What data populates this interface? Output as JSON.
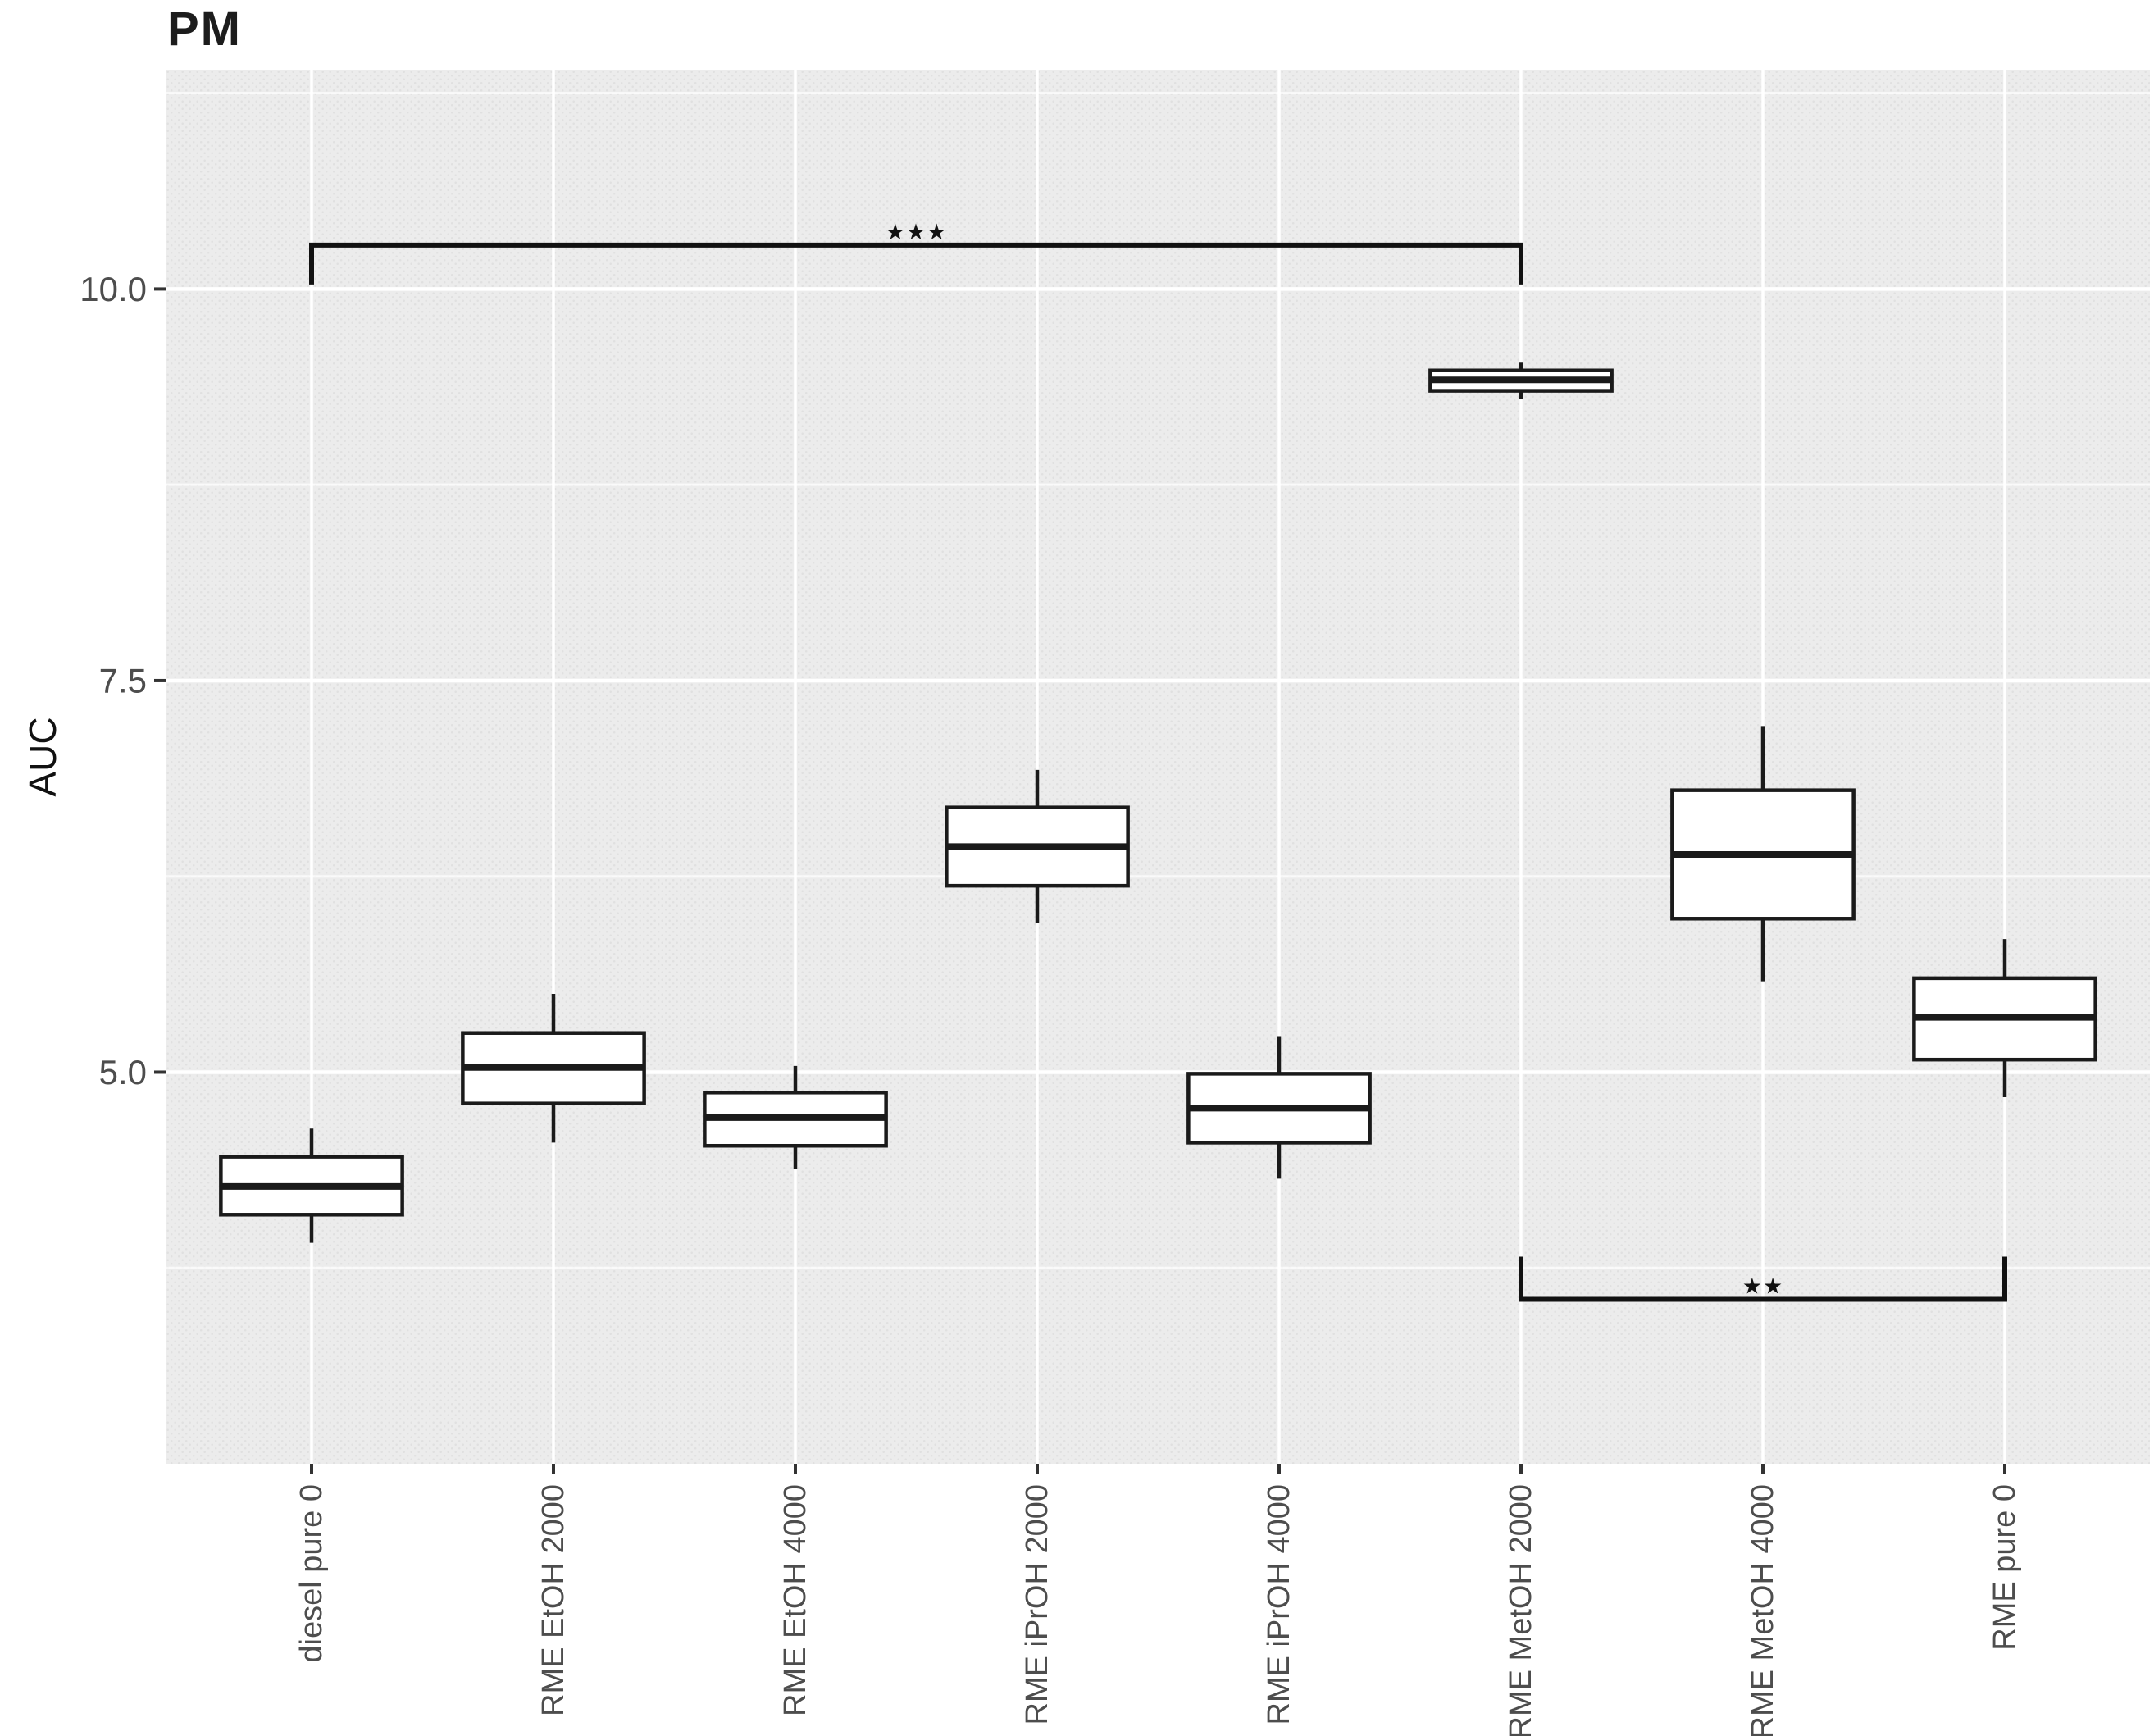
{
  "page": {
    "title": "PM"
  },
  "chart_data": {
    "type": "boxplot",
    "title": "PM",
    "xlabel": "",
    "ylabel": "AUC",
    "ylim": [
      2.5,
      11.4
    ],
    "yticks": [
      5.0,
      7.5,
      10.0
    ],
    "ytick_labels": [
      "5.0",
      "7.5",
      "10.0"
    ],
    "minor_gridlines": [
      3.75,
      6.25,
      8.75,
      11.25
    ],
    "grid": true,
    "legend": "none",
    "categories": [
      "diesel pure 0",
      "RME EtOH 2000",
      "RME EtOH 4000",
      "RME iPrOH 2000",
      "RME iPrOH 4000",
      "RME MetOH 2000",
      "RME MetOH 4000",
      "RME pure 0"
    ],
    "boxes": [
      {
        "category": "diesel pure 0",
        "whisker_low": 3.91,
        "q1": 4.09,
        "median": 4.27,
        "q3": 4.46,
        "whisker_high": 4.64
      },
      {
        "category": "RME EtOH 2000",
        "whisker_low": 4.55,
        "q1": 4.8,
        "median": 5.03,
        "q3": 5.25,
        "whisker_high": 5.5
      },
      {
        "category": "RME EtOH 4000",
        "whisker_low": 4.38,
        "q1": 4.53,
        "median": 4.71,
        "q3": 4.87,
        "whisker_high": 5.04
      },
      {
        "category": "RME iPrOH 2000",
        "whisker_low": 5.95,
        "q1": 6.19,
        "median": 6.44,
        "q3": 6.69,
        "whisker_high": 6.93
      },
      {
        "category": "RME iPrOH 4000",
        "whisker_low": 4.32,
        "q1": 4.55,
        "median": 4.77,
        "q3": 4.99,
        "whisker_high": 5.23
      },
      {
        "category": "RME MetOH 2000",
        "whisker_low": 9.3,
        "q1": 9.35,
        "median": 9.42,
        "q3": 9.48,
        "whisker_high": 9.53
      },
      {
        "category": "RME MetOH 4000",
        "whisker_low": 5.58,
        "q1": 5.98,
        "median": 6.39,
        "q3": 6.8,
        "whisker_high": 7.21
      },
      {
        "category": "RME pure 0",
        "whisker_low": 4.84,
        "q1": 5.08,
        "median": 5.35,
        "q3": 5.6,
        "whisker_high": 5.85
      }
    ],
    "annotations": [
      {
        "label": "***",
        "from": "diesel pure 0",
        "to": "RME MetOH 2000",
        "y": 10.28,
        "tick_direction": "down"
      },
      {
        "label": "**",
        "from": "RME MetOH 2000",
        "to": "RME pure 0",
        "y": 3.55,
        "tick_direction": "up"
      }
    ],
    "style": {
      "panel_bg": "#ececec",
      "panel_dot": "#e0e0e0",
      "grid_color": "#ffffff",
      "box_fill": "#ffffff",
      "box_stroke": "#1a1a1a",
      "bracket_color": "#111111",
      "tick_color": "#333333",
      "text_color": "#4d4d4d",
      "title_color": "#1c1c1c"
    }
  }
}
